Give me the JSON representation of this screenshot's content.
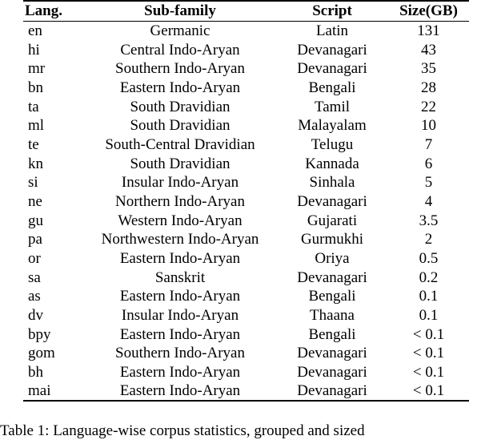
{
  "table": {
    "headers": [
      "Lang.",
      "Sub-family",
      "Script",
      "Size(GB)"
    ],
    "rows": [
      [
        "en",
        "Germanic",
        "Latin",
        "131"
      ],
      [
        "hi",
        "Central Indo-Aryan",
        "Devanagari",
        "43"
      ],
      [
        "mr",
        "Southern Indo-Aryan",
        "Devanagari",
        "35"
      ],
      [
        "bn",
        "Eastern Indo-Aryan",
        "Bengali",
        "28"
      ],
      [
        "ta",
        "South Dravidian",
        "Tamil",
        "22"
      ],
      [
        "ml",
        "South Dravidian",
        "Malayalam",
        "10"
      ],
      [
        "te",
        "South-Central Dravidian",
        "Telugu",
        "7"
      ],
      [
        "kn",
        "South Dravidian",
        "Kannada",
        "6"
      ],
      [
        "si",
        "Insular Indo-Aryan",
        "Sinhala",
        "5"
      ],
      [
        "ne",
        "Northern Indo-Aryan",
        "Devanagari",
        "4"
      ],
      [
        "gu",
        "Western Indo-Aryan",
        "Gujarati",
        "3.5"
      ],
      [
        "pa",
        "Northwestern Indo-Aryan",
        "Gurmukhi",
        "2"
      ],
      [
        "or",
        "Eastern Indo-Aryan",
        "Oriya",
        "0.5"
      ],
      [
        "sa",
        "Sanskrit",
        "Devanagari",
        "0.2"
      ],
      [
        "as",
        "Eastern Indo-Aryan",
        "Bengali",
        "0.1"
      ],
      [
        "dv",
        "Insular Indo-Aryan",
        "Thaana",
        "0.1"
      ],
      [
        "bpy",
        "Eastern Indo-Aryan",
        "Bengali",
        "< 0.1"
      ],
      [
        "gom",
        "Southern Indo-Aryan",
        "Devanagari",
        "< 0.1"
      ],
      [
        "bh",
        "Eastern Indo-Aryan",
        "Devanagari",
        "< 0.1"
      ],
      [
        "mai",
        "Eastern Indo-Aryan",
        "Devanagari",
        "< 0.1"
      ]
    ]
  },
  "caption": "Table 1: Language-wise corpus statistics, grouped and sized"
}
